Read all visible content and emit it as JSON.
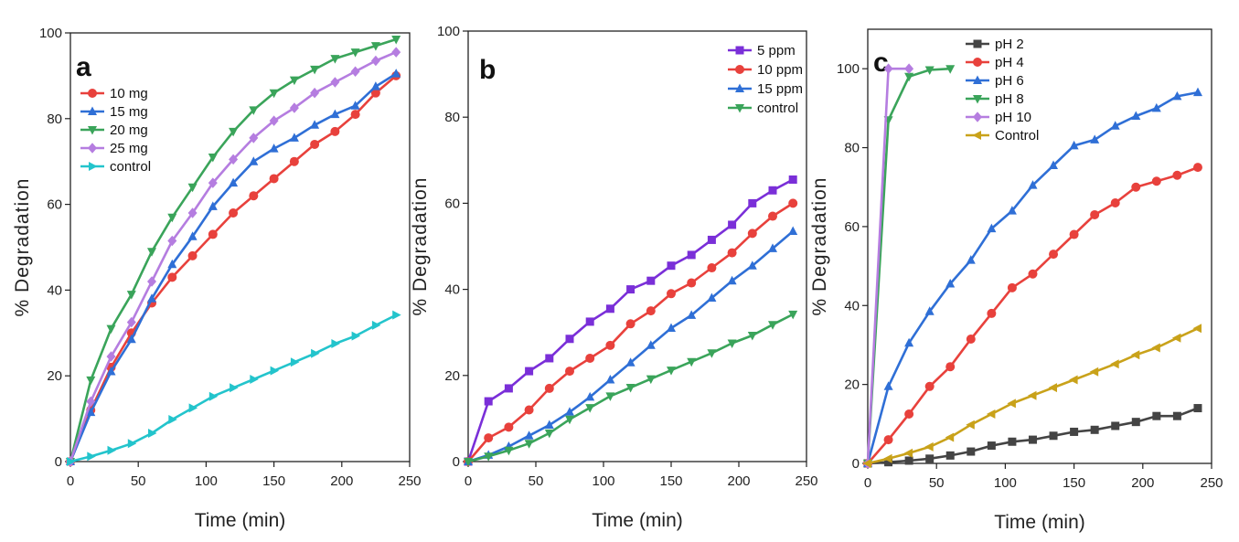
{
  "chart_data": [
    {
      "type": "line",
      "panel_label": "a",
      "xlabel": "Time (min)",
      "ylabel": "% Degradation",
      "xlim": [
        0,
        250
      ],
      "ylim": [
        0,
        100
      ],
      "xticks": [
        0,
        50,
        100,
        150,
        200,
        250
      ],
      "yticks": [
        0,
        20,
        40,
        60,
        80,
        100
      ],
      "legend_position": "upper-left",
      "x": [
        0,
        15,
        30,
        45,
        60,
        75,
        90,
        105,
        120,
        135,
        150,
        165,
        180,
        195,
        210,
        225,
        240
      ],
      "series": [
        {
          "name": "10 mg",
          "color": "#e8413c",
          "marker": "circle",
          "values": [
            0,
            12,
            22,
            30,
            37,
            43,
            48,
            53,
            58,
            62,
            66,
            70,
            74,
            77,
            81,
            86,
            90
          ]
        },
        {
          "name": "15 mg",
          "color": "#2f6fd6",
          "marker": "triangle-up",
          "values": [
            0,
            11.5,
            21,
            28.5,
            38,
            46,
            52.5,
            59.5,
            65,
            70,
            73,
            75.5,
            78.5,
            81,
            83,
            87.5,
            90.5
          ]
        },
        {
          "name": "20 mg",
          "color": "#3aa45a",
          "marker": "triangle-down",
          "values": [
            0,
            19,
            31,
            39,
            49,
            57,
            64,
            71,
            77,
            82,
            86,
            89,
            91.5,
            94,
            95.5,
            97,
            98.5
          ]
        },
        {
          "name": "25 mg",
          "color": "#b57de0",
          "marker": "diamond",
          "values": [
            0,
            14,
            24.5,
            32.5,
            42,
            51.5,
            58,
            65,
            70.5,
            75.5,
            79.5,
            82.5,
            86,
            88.5,
            91,
            93.5,
            95.5
          ]
        },
        {
          "name": "control",
          "color": "#23c4cc",
          "marker": "triangle-right",
          "values": [
            0,
            1.2,
            2.6,
            4.2,
            6.6,
            9.8,
            12.5,
            15.2,
            17.2,
            19.2,
            21.2,
            23.2,
            25.2,
            27.5,
            29.3,
            31.8,
            34.2
          ]
        }
      ]
    },
    {
      "type": "line",
      "panel_label": "b",
      "xlabel": "Time (min)",
      "ylabel": "% Degradation",
      "xlim": [
        0,
        250
      ],
      "ylim": [
        0,
        100
      ],
      "xticks": [
        0,
        50,
        100,
        150,
        200,
        250
      ],
      "yticks": [
        0,
        20,
        40,
        60,
        80,
        100
      ],
      "legend_position": "upper-right",
      "x": [
        0,
        15,
        30,
        45,
        60,
        75,
        90,
        105,
        120,
        135,
        150,
        165,
        180,
        195,
        210,
        225,
        240
      ],
      "series": [
        {
          "name": "5 ppm",
          "color": "#7a2fd8",
          "marker": "square",
          "values": [
            0,
            14,
            17,
            21,
            24,
            28.5,
            32.5,
            35.5,
            40,
            42,
            45.5,
            48,
            51.5,
            55,
            60,
            63,
            65.5
          ]
        },
        {
          "name": "10 ppm",
          "color": "#e8413c",
          "marker": "circle",
          "values": [
            0,
            5.5,
            8,
            12,
            17,
            21,
            24,
            27,
            32,
            35,
            39,
            41.5,
            45,
            48.5,
            53,
            57,
            60
          ]
        },
        {
          "name": "15 ppm",
          "color": "#2f6fd6",
          "marker": "triangle-up",
          "values": [
            0,
            1.5,
            3.5,
            6,
            8.5,
            11.5,
            15,
            19,
            23,
            27,
            31,
            34,
            38,
            42,
            45.5,
            49.5,
            53.5
          ]
        },
        {
          "name": "control",
          "color": "#3aa45a",
          "marker": "triangle-down",
          "values": [
            0,
            1.2,
            2.6,
            4.2,
            6.6,
            9.8,
            12.5,
            15.2,
            17.2,
            19.2,
            21.2,
            23.2,
            25.2,
            27.5,
            29.3,
            31.8,
            34.2
          ]
        }
      ]
    },
    {
      "type": "line",
      "panel_label": "c",
      "xlabel": "Time (min)",
      "ylabel": "% Degradation",
      "xlim": [
        0,
        250
      ],
      "ylim": [
        0,
        110
      ],
      "xticks": [
        0,
        50,
        100,
        150,
        200,
        250
      ],
      "yticks": [
        0,
        20,
        40,
        60,
        80,
        100
      ],
      "legend_position": "upper-left",
      "series": [
        {
          "name": "pH 2",
          "color": "#444444",
          "marker": "square",
          "x": [
            0,
            15,
            30,
            45,
            60,
            75,
            90,
            105,
            120,
            135,
            150,
            165,
            180,
            195,
            210,
            225,
            240
          ],
          "values": [
            0,
            0.3,
            0.7,
            1.2,
            2,
            3,
            4.5,
            5.5,
            6,
            7,
            8,
            8.5,
            9.5,
            10.5,
            12,
            12,
            14
          ]
        },
        {
          "name": "pH 4",
          "color": "#e8413c",
          "marker": "circle",
          "x": [
            0,
            15,
            30,
            45,
            60,
            75,
            90,
            105,
            120,
            135,
            150,
            165,
            180,
            195,
            210,
            225,
            240
          ],
          "values": [
            0,
            6,
            12.5,
            19.5,
            24.5,
            31.5,
            38,
            44.5,
            48,
            53,
            58,
            63,
            66,
            70,
            71.5,
            73,
            75
          ]
        },
        {
          "name": "pH 6",
          "color": "#2f6fd6",
          "marker": "triangle-up",
          "x": [
            0,
            15,
            30,
            45,
            60,
            75,
            90,
            105,
            120,
            135,
            150,
            165,
            180,
            195,
            210,
            225,
            240
          ],
          "values": [
            0,
            19.5,
            30.5,
            38.5,
            45.5,
            51.5,
            59.5,
            64,
            70.5,
            75.5,
            80.5,
            82,
            85.5,
            88,
            90,
            93,
            94
          ]
        },
        {
          "name": "pH 8",
          "color": "#3aa45a",
          "marker": "triangle-down",
          "x": [
            0,
            15,
            30,
            45,
            60
          ],
          "values": [
            0,
            87,
            98,
            99.7,
            100
          ]
        },
        {
          "name": "pH 10",
          "color": "#b57de0",
          "marker": "diamond",
          "x": [
            0,
            15,
            30
          ],
          "values": [
            0,
            100,
            100
          ]
        },
        {
          "name": "Control",
          "color": "#c9a21a",
          "marker": "triangle-left",
          "x": [
            0,
            15,
            30,
            45,
            60,
            75,
            90,
            105,
            120,
            135,
            150,
            165,
            180,
            195,
            210,
            225,
            240
          ],
          "values": [
            0,
            1.2,
            2.6,
            4.2,
            6.6,
            9.8,
            12.5,
            15.2,
            17.2,
            19.2,
            21.2,
            23.2,
            25.2,
            27.5,
            29.3,
            31.8,
            34.2
          ]
        }
      ]
    }
  ]
}
